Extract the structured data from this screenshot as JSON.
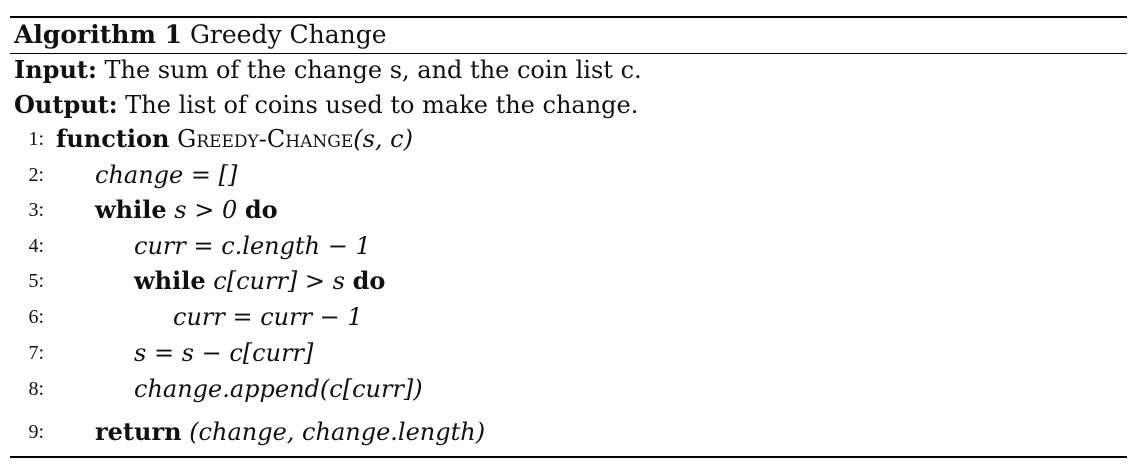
{
  "caption": {
    "label": "Algorithm 1",
    "title": "Greedy Change"
  },
  "input": {
    "label": "Input:",
    "text": "The sum of the change s, and the coin list c."
  },
  "output": {
    "label": "Output:",
    "text": "The list of coins used to make the change."
  },
  "lines": [
    {
      "num": "1:",
      "kw": "function",
      "name": "Greedy-Change",
      "args": "(s, c)"
    },
    {
      "num": "2:",
      "code": "change = []"
    },
    {
      "num": "3:",
      "kw": "while",
      "cond": "s > 0",
      "kw2": "do"
    },
    {
      "num": "4:",
      "code": "curr = c.length − 1"
    },
    {
      "num": "5:",
      "kw": "while",
      "cond": "c[curr] > s",
      "kw2": "do"
    },
    {
      "num": "6:",
      "code": "curr = curr − 1"
    },
    {
      "num": "7:",
      "code": "s = s − c[curr]"
    },
    {
      "num": "8:",
      "code": "change.append(c[curr])"
    },
    {
      "num": "9:",
      "kw": "return",
      "code": "(change, change.length)"
    }
  ]
}
